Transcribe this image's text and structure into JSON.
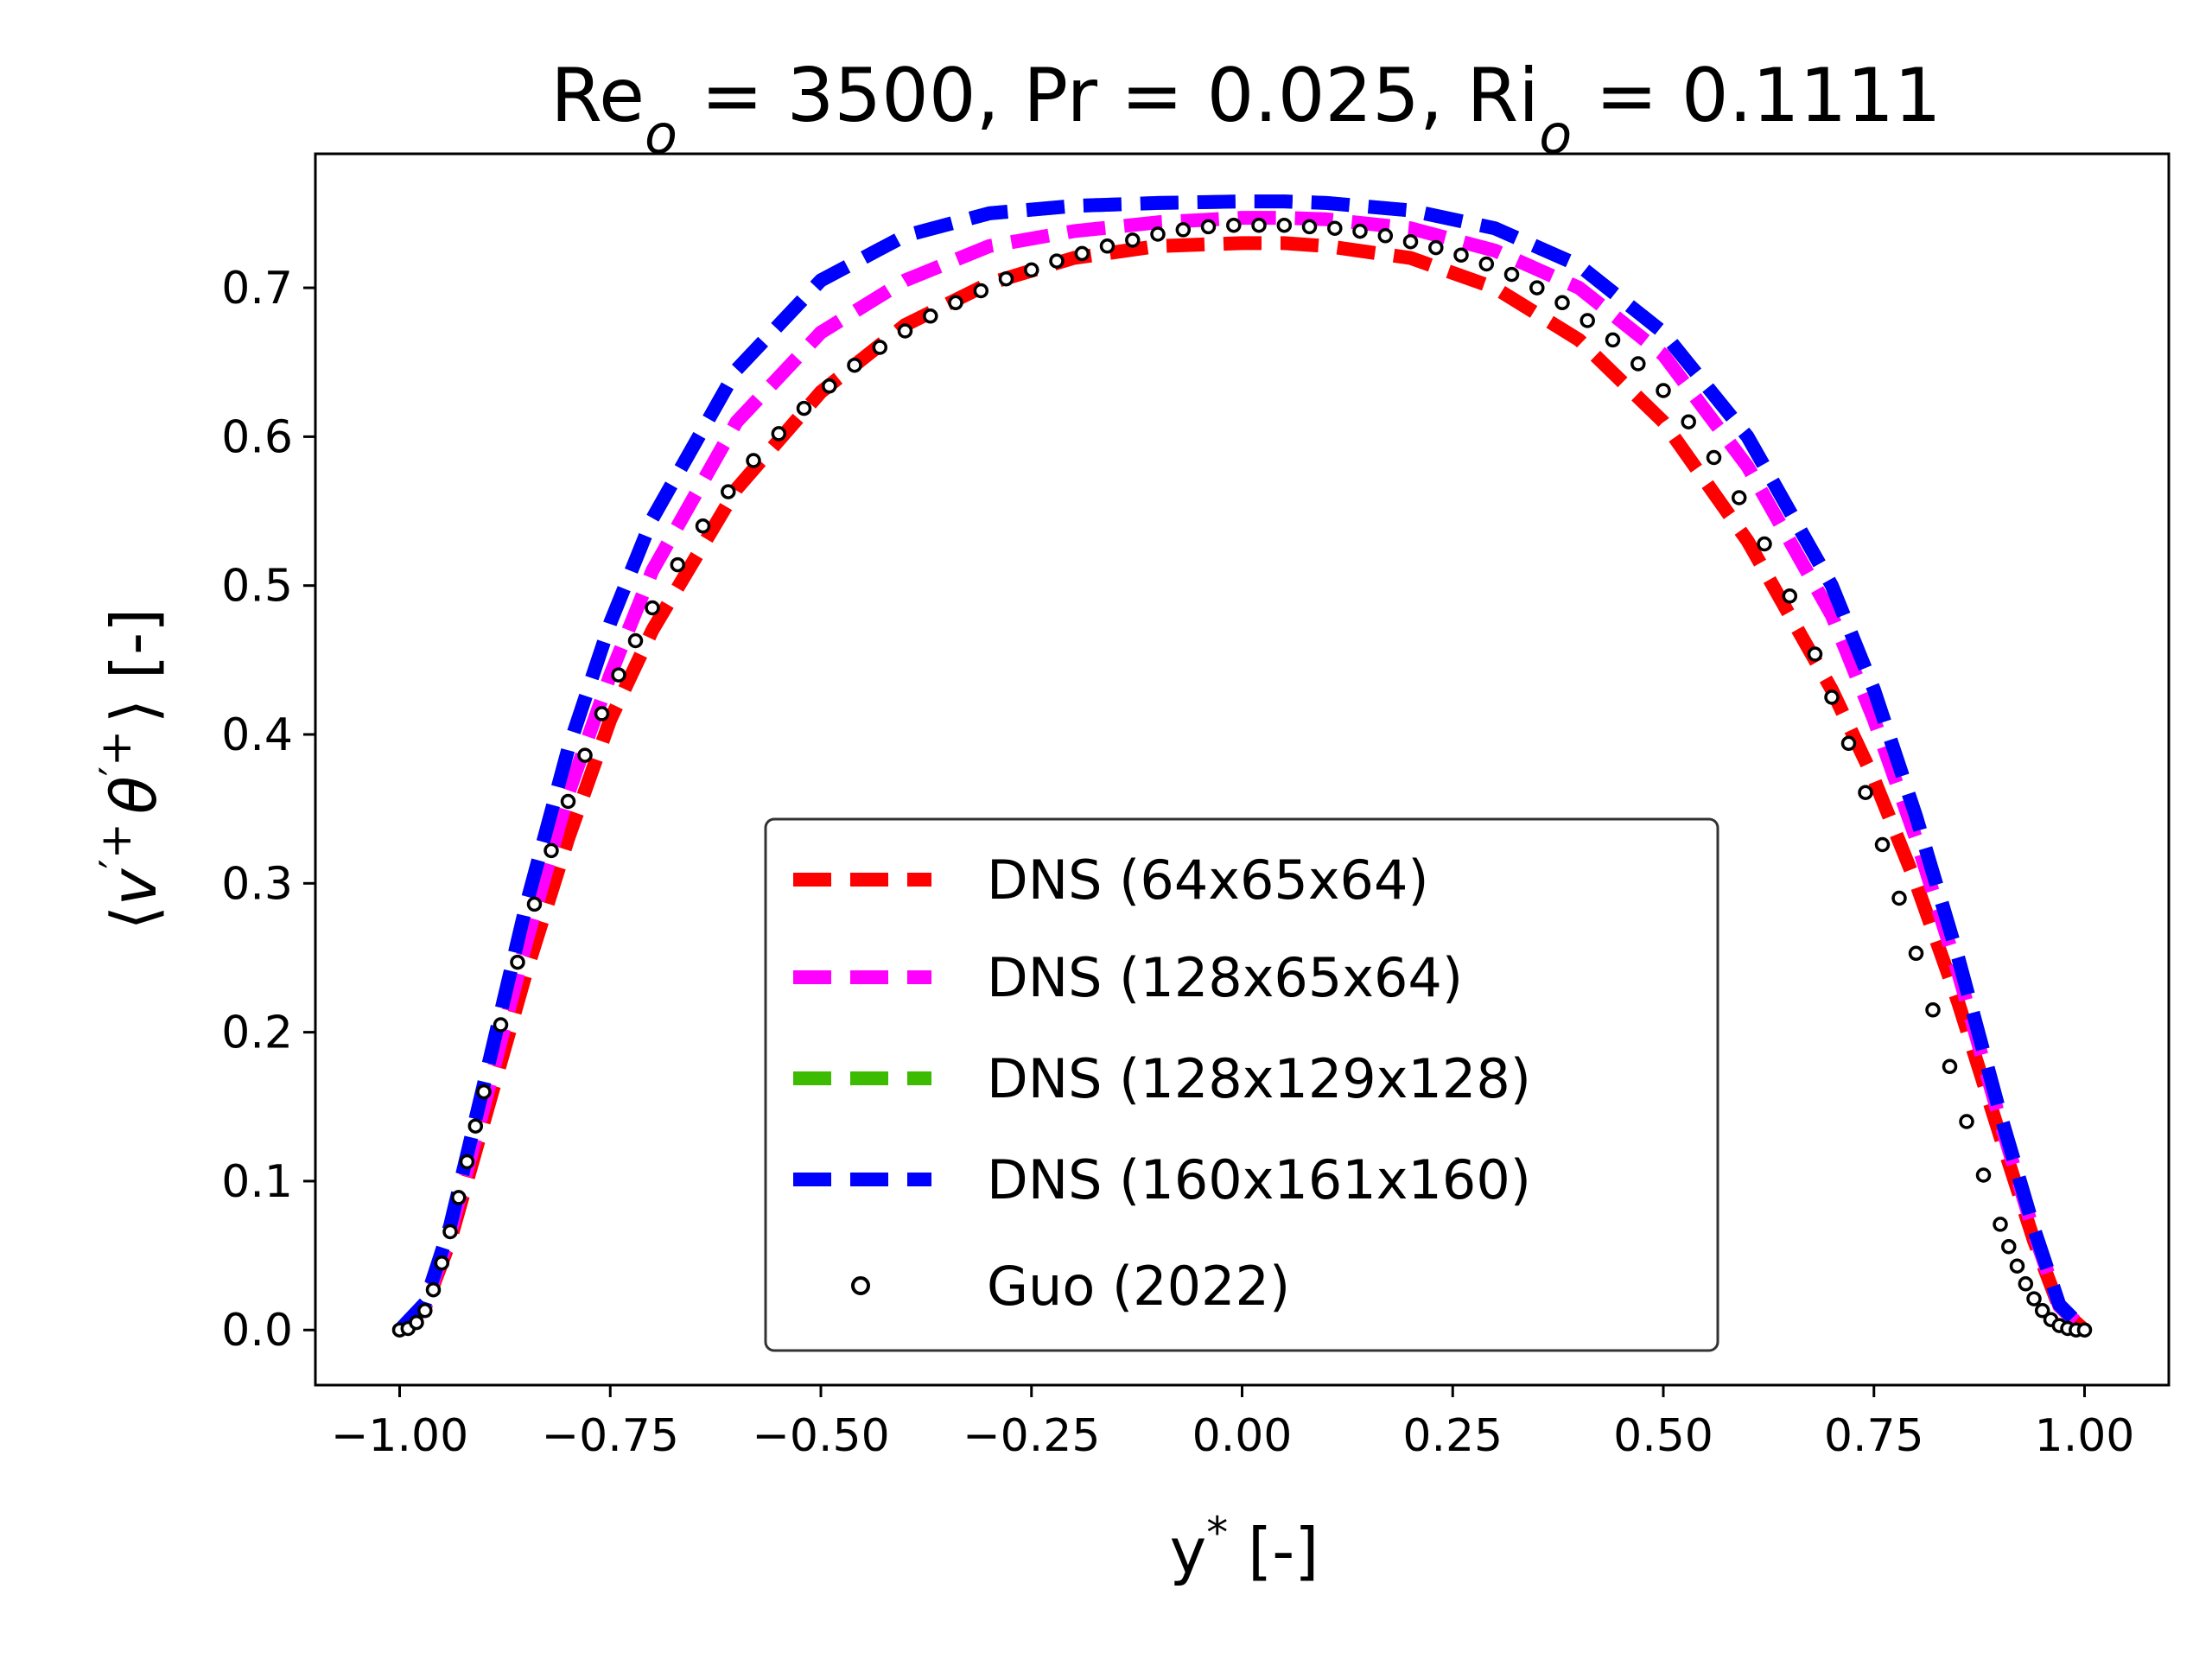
{
  "chart_data": {
    "type": "line",
    "title": "Re_o = 3500, Pr = 0.025, Ri_o = 0.1111",
    "title_parts": {
      "re": "Re",
      "re_sub": "o",
      "mid": " = 3500, Pr = 0.025, Ri",
      "ri_sub": "o",
      "end": " = 0.1111"
    },
    "xlabel": "y* [-]",
    "xlabel_parts": {
      "main": "y",
      "sup": "*",
      "unit": " [-]"
    },
    "ylabel": "⟨v′+ θ′+⟩ [-]",
    "ylabel_parts": {
      "open": "⟨",
      "v": "v",
      "sup1": "′+",
      "theta": "θ",
      "sup2": "′+",
      "close": "⟩",
      "unit": " [-]"
    },
    "xlim": [
      -1.1,
      1.1
    ],
    "ylim": [
      -0.037,
      0.79
    ],
    "x_ticks": [
      -1.0,
      -0.75,
      -0.5,
      -0.25,
      0.0,
      0.25,
      0.5,
      0.75,
      1.0
    ],
    "x_tick_labels": [
      "−1.00",
      "−0.75",
      "−0.50",
      "−0.25",
      "0.00",
      "0.25",
      "0.50",
      "0.75",
      "1.00"
    ],
    "y_ticks": [
      0.0,
      0.1,
      0.2,
      0.3,
      0.4,
      0.5,
      0.6,
      0.7
    ],
    "y_tick_labels": [
      "0.0",
      "0.1",
      "0.2",
      "0.3",
      "0.4",
      "0.5",
      "0.6",
      "0.7"
    ],
    "grid": false,
    "legend_position": "lower-center",
    "series": [
      {
        "name": "DNS (64x65x64)",
        "color": "#ff0000",
        "style": "dashed",
        "x": [
          -1.0,
          -0.97,
          -0.94,
          -0.9,
          -0.85,
          -0.8,
          -0.75,
          -0.7,
          -0.6,
          -0.5,
          -0.4,
          -0.3,
          -0.2,
          -0.1,
          0.0,
          0.05,
          0.1,
          0.2,
          0.3,
          0.4,
          0.5,
          0.6,
          0.7,
          0.75,
          0.8,
          0.85,
          0.9,
          0.94,
          0.97,
          1.0
        ],
        "y": [
          0.0,
          0.015,
          0.06,
          0.14,
          0.24,
          0.33,
          0.41,
          0.47,
          0.565,
          0.63,
          0.675,
          0.703,
          0.72,
          0.728,
          0.73,
          0.73,
          0.728,
          0.72,
          0.7,
          0.665,
          0.61,
          0.53,
          0.43,
          0.37,
          0.3,
          0.22,
          0.13,
          0.06,
          0.015,
          0.0
        ]
      },
      {
        "name": "DNS (128x65x64)",
        "color": "#ff00ff",
        "style": "dashed",
        "x": [
          -1.0,
          -0.97,
          -0.94,
          -0.9,
          -0.85,
          -0.8,
          -0.75,
          -0.7,
          -0.6,
          -0.5,
          -0.4,
          -0.3,
          -0.2,
          -0.1,
          0.0,
          0.05,
          0.1,
          0.2,
          0.3,
          0.4,
          0.5,
          0.6,
          0.7,
          0.75,
          0.8,
          0.85,
          0.9,
          0.94,
          0.97,
          1.0
        ],
        "y": [
          0.0,
          0.016,
          0.065,
          0.15,
          0.26,
          0.36,
          0.44,
          0.51,
          0.61,
          0.67,
          0.705,
          0.728,
          0.738,
          0.744,
          0.747,
          0.747,
          0.746,
          0.74,
          0.725,
          0.7,
          0.655,
          0.58,
          0.48,
          0.41,
          0.33,
          0.24,
          0.14,
          0.065,
          0.016,
          0.0
        ]
      },
      {
        "name": "DNS (128x129x128)",
        "color": "#3cbb00",
        "style": "dashed",
        "x": [
          -1.0,
          -0.97,
          -0.94,
          -0.9,
          -0.85,
          -0.8,
          -0.75,
          -0.7,
          -0.6,
          -0.5,
          -0.4,
          -0.3,
          -0.2,
          -0.1,
          0.0,
          0.05,
          0.1,
          0.2,
          0.3,
          0.4,
          0.5,
          0.6,
          0.7,
          0.75,
          0.8,
          0.85,
          0.9,
          0.94,
          0.97,
          1.0
        ],
        "y": [
          0.0,
          0.018,
          0.07,
          0.165,
          0.285,
          0.39,
          0.475,
          0.545,
          0.645,
          0.705,
          0.735,
          0.75,
          0.755,
          0.757,
          0.758,
          0.758,
          0.757,
          0.752,
          0.74,
          0.715,
          0.67,
          0.6,
          0.5,
          0.43,
          0.345,
          0.25,
          0.145,
          0.068,
          0.017,
          0.0
        ]
      },
      {
        "name": "DNS (160x161x160)",
        "color": "#0000ff",
        "style": "dashed",
        "x": [
          -1.0,
          -0.97,
          -0.94,
          -0.9,
          -0.85,
          -0.8,
          -0.75,
          -0.7,
          -0.6,
          -0.5,
          -0.4,
          -0.3,
          -0.2,
          -0.1,
          0.0,
          0.05,
          0.1,
          0.2,
          0.3,
          0.4,
          0.5,
          0.6,
          0.7,
          0.75,
          0.8,
          0.85,
          0.9,
          0.94,
          0.97,
          1.0
        ],
        "y": [
          0.0,
          0.018,
          0.07,
          0.165,
          0.285,
          0.39,
          0.475,
          0.545,
          0.645,
          0.705,
          0.735,
          0.75,
          0.755,
          0.757,
          0.758,
          0.758,
          0.757,
          0.752,
          0.74,
          0.715,
          0.67,
          0.6,
          0.5,
          0.43,
          0.345,
          0.25,
          0.145,
          0.068,
          0.017,
          0.0
        ]
      },
      {
        "name": "Guo (2022)",
        "color": "#000000",
        "style": "markers",
        "marker": "open-circle",
        "x": [
          -1.0,
          -0.99,
          -0.98,
          -0.97,
          -0.96,
          -0.95,
          -0.94,
          -0.93,
          -0.92,
          -0.91,
          -0.9,
          -0.88,
          -0.86,
          -0.84,
          -0.82,
          -0.8,
          -0.78,
          -0.76,
          -0.74,
          -0.72,
          -0.7,
          -0.67,
          -0.64,
          -0.61,
          -0.58,
          -0.55,
          -0.52,
          -0.49,
          -0.46,
          -0.43,
          -0.4,
          -0.37,
          -0.34,
          -0.31,
          -0.28,
          -0.25,
          -0.22,
          -0.19,
          -0.16,
          -0.13,
          -0.1,
          -0.07,
          -0.04,
          -0.01,
          0.02,
          0.05,
          0.08,
          0.11,
          0.14,
          0.17,
          0.2,
          0.23,
          0.26,
          0.29,
          0.32,
          0.35,
          0.38,
          0.41,
          0.44,
          0.47,
          0.5,
          0.53,
          0.56,
          0.59,
          0.62,
          0.65,
          0.68,
          0.7,
          0.72,
          0.74,
          0.76,
          0.78,
          0.8,
          0.82,
          0.84,
          0.86,
          0.88,
          0.9,
          0.91,
          0.92,
          0.93,
          0.94,
          0.95,
          0.96,
          0.97,
          0.98,
          0.99,
          1.0
        ],
        "y": [
          0.0,
          0.001,
          0.005,
          0.013,
          0.027,
          0.045,
          0.066,
          0.089,
          0.113,
          0.137,
          0.16,
          0.205,
          0.247,
          0.286,
          0.322,
          0.355,
          0.386,
          0.414,
          0.44,
          0.463,
          0.485,
          0.514,
          0.54,
          0.563,
          0.584,
          0.602,
          0.619,
          0.634,
          0.648,
          0.66,
          0.671,
          0.681,
          0.69,
          0.698,
          0.706,
          0.712,
          0.718,
          0.723,
          0.728,
          0.732,
          0.736,
          0.739,
          0.741,
          0.742,
          0.742,
          0.742,
          0.741,
          0.74,
          0.738,
          0.735,
          0.731,
          0.727,
          0.722,
          0.716,
          0.709,
          0.7,
          0.69,
          0.678,
          0.665,
          0.649,
          0.631,
          0.61,
          0.586,
          0.559,
          0.528,
          0.493,
          0.454,
          0.425,
          0.394,
          0.361,
          0.326,
          0.29,
          0.253,
          0.215,
          0.177,
          0.14,
          0.104,
          0.071,
          0.056,
          0.043,
          0.031,
          0.021,
          0.013,
          0.007,
          0.003,
          0.001,
          0.0,
          0.0
        ]
      }
    ]
  }
}
